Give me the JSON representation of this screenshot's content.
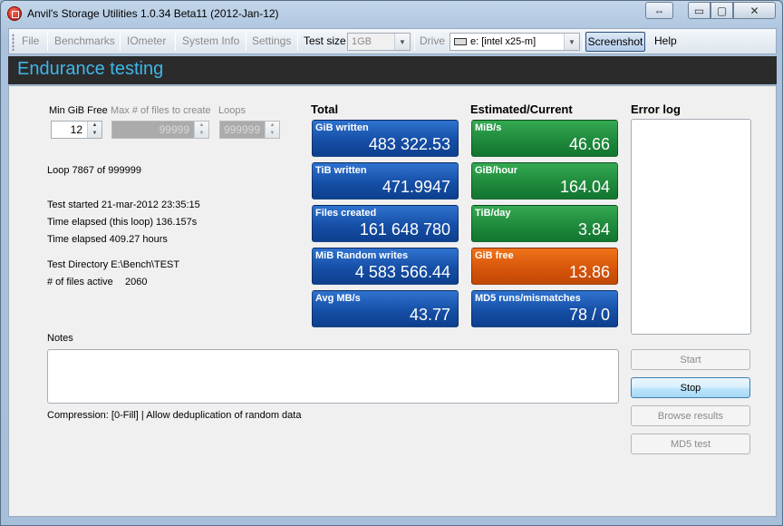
{
  "window": {
    "title": "Anvil's Storage Utilities 1.0.34 Beta11 (2012-Jan-12)",
    "caption_buttons": {
      "resize": "⇔",
      "minimize": "▭",
      "maximize": "▢",
      "close": "✕"
    }
  },
  "toolbar": {
    "file": "File",
    "benchmarks": "Benchmarks",
    "iometer": "IOmeter",
    "system_info": "System Info",
    "settings": "Settings",
    "test_size_label": "Test size",
    "test_size_value": "1GB",
    "drive_label": "Drive",
    "drive_value": "e: [intel x25-m]",
    "screenshot": "Screenshot",
    "help": "Help"
  },
  "header": {
    "title": "Endurance testing"
  },
  "params": {
    "min_gib_free_label": "Min GiB Free",
    "min_gib_free_value": "12",
    "max_files_label": "Max # of files to create",
    "max_files_value": "99999",
    "loops_label": "Loops",
    "loops_value": "999999"
  },
  "info": {
    "loop": "Loop 7867 of 999999",
    "test_started": "Test started 21-mar-2012 23:35:15",
    "time_elapsed_loop": "Time elapsed (this loop) 136.157s",
    "time_elapsed": "Time elapsed 409.27 hours",
    "test_directory": "Test Directory E:\\Bench\\TEST",
    "files_active_label": "# of files active",
    "files_active_value": "2060"
  },
  "total": {
    "title": "Total",
    "tiles": [
      {
        "label": "GiB written",
        "value": "483 322.53"
      },
      {
        "label": "TiB written",
        "value": "471.9947"
      },
      {
        "label": "Files created",
        "value": "161 648 780"
      },
      {
        "label": "MiB Random writes",
        "value": "4 583 566.44"
      },
      {
        "label": "Avg MB/s",
        "value": "43.77"
      }
    ]
  },
  "estimated": {
    "title": "Estimated/Current",
    "tiles": [
      {
        "label": "MiB/s",
        "value": "46.66"
      },
      {
        "label": "GiB/hour",
        "value": "164.04"
      },
      {
        "label": "TiB/day",
        "value": "3.84"
      },
      {
        "label": "GiB free",
        "value": "13.86"
      },
      {
        "label": "MD5 runs/mismatches",
        "value": "78 / 0"
      }
    ]
  },
  "error_log": {
    "title": "Error log"
  },
  "notes": {
    "label": "Notes"
  },
  "compression": "Compression: [0-Fill] | Allow deduplication of random data",
  "buttons": {
    "start": "Start",
    "stop": "Stop",
    "browse_results": "Browse results",
    "md5_test": "MD5 test"
  },
  "colors": {
    "header_text": "#3fb6ea",
    "tile_blue": "#164fa6",
    "tile_green": "#1f8a3c",
    "tile_orange": "#d8560a"
  }
}
